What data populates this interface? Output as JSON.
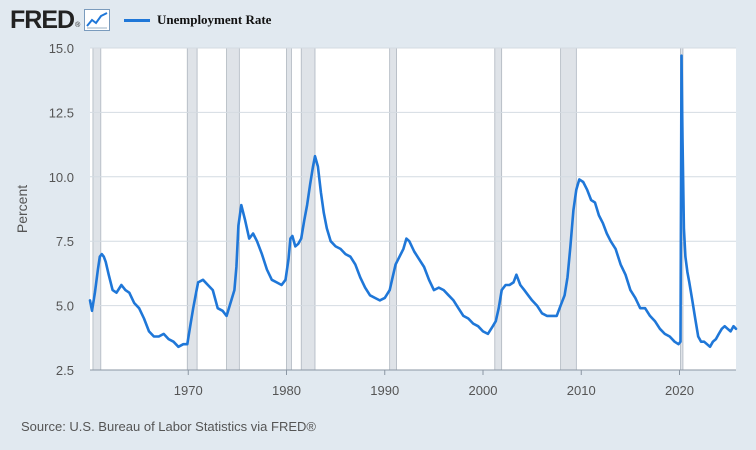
{
  "brand": {
    "logo_text": "FRED",
    "registered_mark": "®",
    "icon": "line-chart-icon"
  },
  "legend": {
    "series_label": "Unemployment Rate",
    "color": "#1f77d8"
  },
  "colors": {
    "background": "#e1e9f0",
    "plot_background": "#ffffff",
    "line": "#1f77d8",
    "recession_shading": "#dfe3e8",
    "grid": "#d4dbe2"
  },
  "source": "Source: U.S. Bureau of Labor Statistics via FRED®",
  "chart_data": {
    "type": "line",
    "title": "",
    "xlabel": "",
    "ylabel": "Percent",
    "xlim": [
      1960.0,
      2025.75
    ],
    "ylim": [
      2.5,
      15.0
    ],
    "y_ticks": [
      {
        "value": 2.5,
        "label": "2.5"
      },
      {
        "value": 5.0,
        "label": "5.0"
      },
      {
        "value": 7.5,
        "label": "7.5"
      },
      {
        "value": 10.0,
        "label": "10.0"
      },
      {
        "value": 12.5,
        "label": "12.5"
      },
      {
        "value": 15.0,
        "label": "15.0"
      }
    ],
    "x_ticks": [
      {
        "value": 1970,
        "label": "1970"
      },
      {
        "value": 1980,
        "label": "1980"
      },
      {
        "value": 1990,
        "label": "1990"
      },
      {
        "value": 2000,
        "label": "2000"
      },
      {
        "value": 2010,
        "label": "2010"
      },
      {
        "value": 2020,
        "label": "2020"
      }
    ],
    "grid": "horizontal",
    "recessions": [
      [
        1960.3,
        1961.1
      ],
      [
        1969.9,
        1970.9
      ],
      [
        1973.9,
        1975.2
      ],
      [
        1980.0,
        1980.5
      ],
      [
        1981.5,
        1982.9
      ],
      [
        1990.5,
        1991.2
      ],
      [
        2001.2,
        2001.9
      ],
      [
        2007.9,
        2009.5
      ],
      [
        2020.1,
        2020.35
      ]
    ],
    "series": [
      {
        "name": "Unemployment Rate",
        "x": [
          1960.0,
          1960.2,
          1960.5,
          1960.8,
          1961.0,
          1961.2,
          1961.4,
          1961.6,
          1961.9,
          1962.3,
          1962.7,
          1963.2,
          1963.6,
          1964.0,
          1964.5,
          1965.0,
          1965.5,
          1966.0,
          1966.5,
          1967.0,
          1967.5,
          1968.0,
          1968.5,
          1969.0,
          1969.5,
          1969.9,
          1970.2,
          1970.5,
          1970.8,
          1971.0,
          1971.5,
          1972.0,
          1972.5,
          1973.0,
          1973.5,
          1973.9,
          1974.3,
          1974.7,
          1974.9,
          1975.1,
          1975.4,
          1975.8,
          1976.2,
          1976.6,
          1977.0,
          1977.5,
          1978.0,
          1978.5,
          1979.0,
          1979.5,
          1979.9,
          1980.2,
          1980.4,
          1980.6,
          1980.9,
          1981.2,
          1981.5,
          1981.8,
          1982.1,
          1982.4,
          1982.7,
          1982.9,
          1983.2,
          1983.5,
          1983.8,
          1984.1,
          1984.5,
          1985.0,
          1985.5,
          1986.0,
          1986.5,
          1987.0,
          1987.5,
          1988.0,
          1988.5,
          1989.0,
          1989.5,
          1990.0,
          1990.5,
          1990.8,
          1991.1,
          1991.5,
          1991.9,
          1992.2,
          1992.5,
          1993.0,
          1993.5,
          1994.0,
          1994.5,
          1995.0,
          1995.5,
          1996.0,
          1996.5,
          1997.0,
          1997.5,
          1998.0,
          1998.5,
          1999.0,
          1999.5,
          2000.0,
          2000.5,
          2001.0,
          2001.3,
          2001.6,
          2001.9,
          2002.3,
          2002.7,
          2003.1,
          2003.4,
          2003.8,
          2004.2,
          2004.6,
          2005.0,
          2005.5,
          2006.0,
          2006.5,
          2007.0,
          2007.5,
          2007.9,
          2008.3,
          2008.6,
          2008.9,
          2009.2,
          2009.5,
          2009.8,
          2010.2,
          2010.6,
          2011.0,
          2011.4,
          2011.8,
          2012.2,
          2012.6,
          2013.0,
          2013.5,
          2014.0,
          2014.5,
          2015.0,
          2015.5,
          2016.0,
          2016.5,
          2017.0,
          2017.5,
          2018.0,
          2018.5,
          2019.0,
          2019.5,
          2019.9,
          2020.1,
          2020.2,
          2020.3,
          2020.45,
          2020.6,
          2020.8,
          2021.0,
          2021.3,
          2021.6,
          2021.9,
          2022.2,
          2022.5,
          2022.8,
          2023.1,
          2023.4,
          2023.7,
          2024.0,
          2024.3,
          2024.6,
          2024.9,
          2025.2,
          2025.5,
          2025.75
        ],
        "values": [
          5.2,
          4.8,
          5.5,
          6.4,
          6.9,
          7.0,
          6.9,
          6.7,
          6.2,
          5.6,
          5.5,
          5.8,
          5.6,
          5.5,
          5.1,
          4.9,
          4.5,
          4.0,
          3.8,
          3.8,
          3.9,
          3.7,
          3.6,
          3.4,
          3.5,
          3.5,
          4.2,
          4.9,
          5.5,
          5.9,
          6.0,
          5.8,
          5.6,
          4.9,
          4.8,
          4.6,
          5.1,
          5.6,
          6.5,
          8.1,
          8.9,
          8.3,
          7.6,
          7.8,
          7.5,
          7.0,
          6.4,
          6.0,
          5.9,
          5.8,
          6.0,
          6.8,
          7.6,
          7.7,
          7.3,
          7.4,
          7.6,
          8.3,
          8.9,
          9.7,
          10.4,
          10.8,
          10.4,
          9.4,
          8.6,
          8.0,
          7.5,
          7.3,
          7.2,
          7.0,
          6.9,
          6.6,
          6.1,
          5.7,
          5.4,
          5.3,
          5.2,
          5.3,
          5.6,
          6.1,
          6.6,
          6.9,
          7.2,
          7.6,
          7.5,
          7.1,
          6.8,
          6.5,
          6.0,
          5.6,
          5.7,
          5.6,
          5.4,
          5.2,
          4.9,
          4.6,
          4.5,
          4.3,
          4.2,
          4.0,
          3.9,
          4.2,
          4.4,
          4.9,
          5.6,
          5.8,
          5.8,
          5.9,
          6.2,
          5.8,
          5.6,
          5.4,
          5.2,
          5.0,
          4.7,
          4.6,
          4.6,
          4.6,
          5.0,
          5.4,
          6.1,
          7.3,
          8.7,
          9.5,
          9.9,
          9.8,
          9.5,
          9.1,
          9.0,
          8.5,
          8.2,
          7.8,
          7.5,
          7.2,
          6.6,
          6.2,
          5.6,
          5.3,
          4.9,
          4.9,
          4.6,
          4.4,
          4.1,
          3.9,
          3.8,
          3.6,
          3.5,
          3.6,
          14.7,
          11.5,
          8.0,
          6.9,
          6.3,
          5.9,
          5.2,
          4.5,
          3.8,
          3.6,
          3.6,
          3.5,
          3.4,
          3.6,
          3.7,
          3.9,
          4.1,
          4.2,
          4.1,
          4.0,
          4.2,
          4.1
        ]
      }
    ]
  }
}
